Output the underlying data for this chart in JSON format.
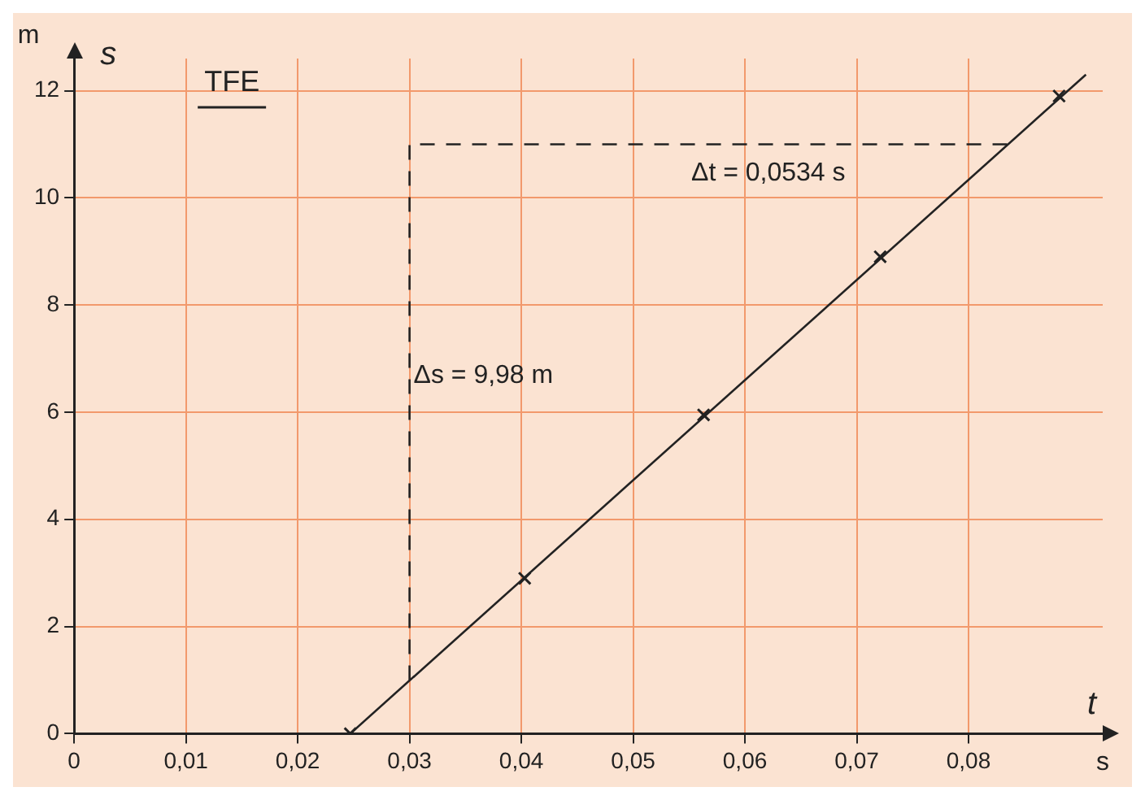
{
  "chart_data": {
    "type": "scatter",
    "title": "TFE",
    "xlabel": "t",
    "ylabel": "s",
    "xlim": [
      0,
      0.092
    ],
    "ylim": [
      0,
      12.6
    ],
    "xticks": [
      0,
      {
        "value": 0.01,
        "label": "0,01"
      },
      {
        "value": 0.02,
        "label": "0,02"
      },
      {
        "value": 0.03,
        "label": "0,03"
      },
      {
        "value": 0.04,
        "label": "0,04"
      },
      {
        "value": 0.05,
        "label": "0,05"
      },
      {
        "value": 0.06,
        "label": "0,06"
      },
      {
        "value": 0.07,
        "label": "0,07"
      },
      {
        "value": 0.08,
        "label": "0,08"
      }
    ],
    "yticks": [
      0,
      2,
      4,
      6,
      8,
      10,
      12
    ],
    "grid": true,
    "legend": false,
    "series": [
      {
        "color": "#222222",
        "marker": "cross",
        "x": [
          0.0247,
          0.0403,
          0.0563,
          0.0721,
          0.0881
        ],
        "values": [
          0,
          2.9,
          5.95,
          8.9,
          11.9
        ]
      },
      {
        "type": "line",
        "color": "#222222",
        "marker": "none",
        "line_style": "solid",
        "x": [
          0.0247,
          0.0905
        ],
        "values": [
          0,
          12.3
        ]
      },
      {
        "type": "line",
        "color": "#222222",
        "marker": "none",
        "line_style": "dashed",
        "x": [
          0.03,
          0.03,
          0.0835
        ],
        "values": [
          1,
          11,
          11
        ]
      }
    ],
    "annotations": [
      "Δt = 0,0534 s",
      "Δs = 9,98 m",
      "m",
      "s"
    ]
  }
}
